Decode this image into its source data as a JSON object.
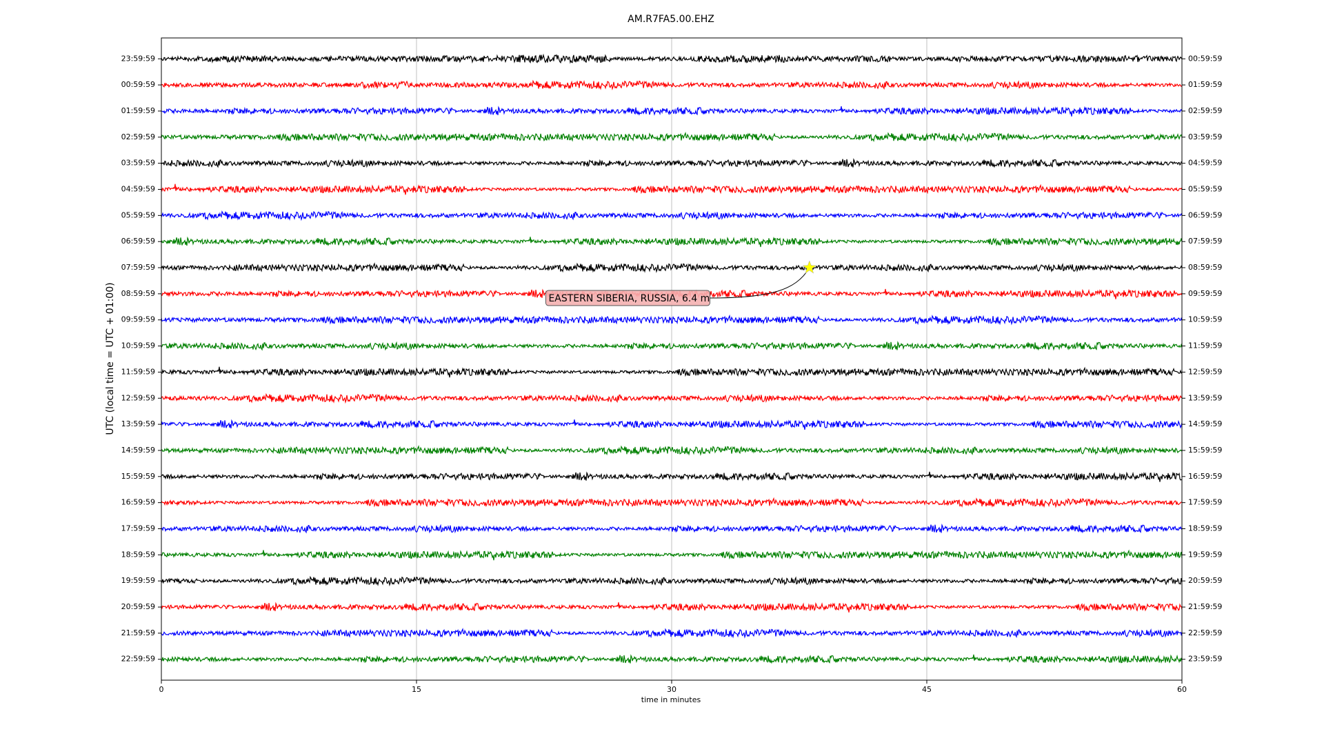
{
  "chart_data": {
    "type": "dayplot",
    "title": "AM.R7FA5.00.EHZ",
    "xlabel": "time in minutes",
    "ylabel": "UTC (local time = UTC + 01:00)",
    "xlim": [
      0,
      60
    ],
    "xticks": [
      0,
      15,
      30,
      45,
      60
    ],
    "grid": true,
    "colors": [
      "#000000",
      "#ff0000",
      "#0000ff",
      "#008000"
    ],
    "left_labels": [
      "23:59:59",
      "00:59:59",
      "01:59:59",
      "02:59:59",
      "03:59:59",
      "04:59:59",
      "05:59:59",
      "06:59:59",
      "07:59:59",
      "08:59:59",
      "09:59:59",
      "10:59:59",
      "11:59:59",
      "12:59:59",
      "13:59:59",
      "14:59:59",
      "15:59:59",
      "16:59:59",
      "17:59:59",
      "18:59:59",
      "19:59:59",
      "20:59:59",
      "21:59:59",
      "22:59:59"
    ],
    "right_labels": [
      "00:59:59",
      "01:59:59",
      "02:59:59",
      "03:59:59",
      "04:59:59",
      "05:59:59",
      "06:59:59",
      "07:59:59",
      "08:59:59",
      "09:59:59",
      "10:59:59",
      "11:59:59",
      "12:59:59",
      "13:59:59",
      "14:59:59",
      "15:59:59",
      "16:59:59",
      "17:59:59",
      "18:59:59",
      "19:59:59",
      "20:59:59",
      "21:59:59",
      "22:59:59",
      "23:59:59"
    ],
    "event": {
      "label": "EASTERN SIBERIA, RUSSIA, 6.4 m",
      "x": 38.1,
      "row": 8,
      "color": "#ffff00"
    }
  }
}
